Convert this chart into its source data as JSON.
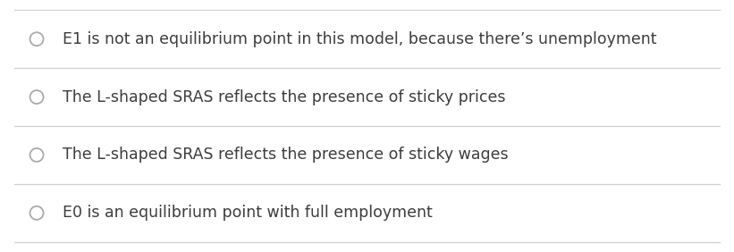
{
  "options": [
    "E1 is not an equilibrium point in this model, because there’s unemployment",
    "The L-shaped SRAS reflects the presence of sticky prices",
    "The L-shaped SRAS reflects the presence of sticky wages",
    "E0 is an equilibrium point with full employment"
  ],
  "background_color": "#ffffff",
  "text_color": "#3d3d3d",
  "divider_color": "#d0d0d0",
  "circle_edge_color": "#aaaaaa",
  "circle_face_color": "#ffffff",
  "font_size": 12.5,
  "figwidth": 8.21,
  "figheight": 2.82,
  "dpi": 100
}
